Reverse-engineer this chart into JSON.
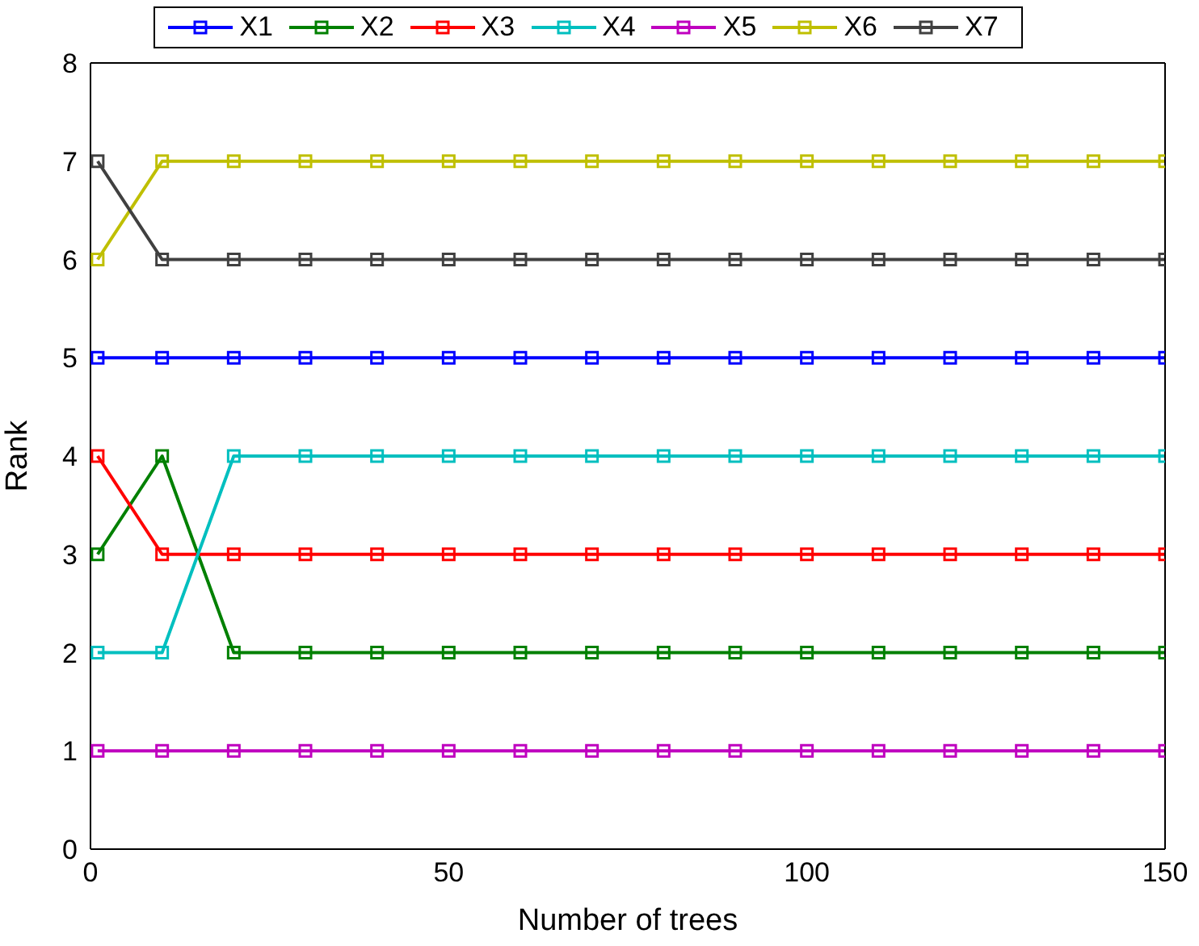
{
  "chart_data": {
    "type": "line",
    "xlabel": "Number of trees",
    "ylabel": "Rank",
    "x": [
      1,
      10,
      20,
      30,
      40,
      50,
      60,
      70,
      80,
      90,
      100,
      110,
      120,
      130,
      140,
      150
    ],
    "xlim": [
      0,
      150
    ],
    "xticks": [
      0,
      50,
      100,
      150
    ],
    "ylim": [
      0,
      8
    ],
    "yticks": [
      0,
      1,
      2,
      3,
      4,
      5,
      6,
      7,
      8
    ],
    "grid": false,
    "legend": "top",
    "marker": "square",
    "line_style": "solid",
    "series": [
      {
        "name": "X1",
        "color": "#0000ff",
        "values": [
          5,
          5,
          5,
          5,
          5,
          5,
          5,
          5,
          5,
          5,
          5,
          5,
          5,
          5,
          5,
          5
        ]
      },
      {
        "name": "X2",
        "color": "#008000",
        "values": [
          3,
          4,
          2,
          2,
          2,
          2,
          2,
          2,
          2,
          2,
          2,
          2,
          2,
          2,
          2,
          2
        ]
      },
      {
        "name": "X3",
        "color": "#ff0000",
        "values": [
          4,
          3,
          3,
          3,
          3,
          3,
          3,
          3,
          3,
          3,
          3,
          3,
          3,
          3,
          3,
          3
        ]
      },
      {
        "name": "X4",
        "color": "#00bfbf",
        "values": [
          2,
          2,
          4,
          4,
          4,
          4,
          4,
          4,
          4,
          4,
          4,
          4,
          4,
          4,
          4,
          4
        ]
      },
      {
        "name": "X5",
        "color": "#bf00bf",
        "values": [
          1,
          1,
          1,
          1,
          1,
          1,
          1,
          1,
          1,
          1,
          1,
          1,
          1,
          1,
          1,
          1
        ]
      },
      {
        "name": "X6",
        "color": "#bfbf00",
        "values": [
          6,
          7,
          7,
          7,
          7,
          7,
          7,
          7,
          7,
          7,
          7,
          7,
          7,
          7,
          7,
          7
        ]
      },
      {
        "name": "X7",
        "color": "#404040",
        "values": [
          7,
          6,
          6,
          6,
          6,
          6,
          6,
          6,
          6,
          6,
          6,
          6,
          6,
          6,
          6,
          6
        ]
      }
    ]
  }
}
